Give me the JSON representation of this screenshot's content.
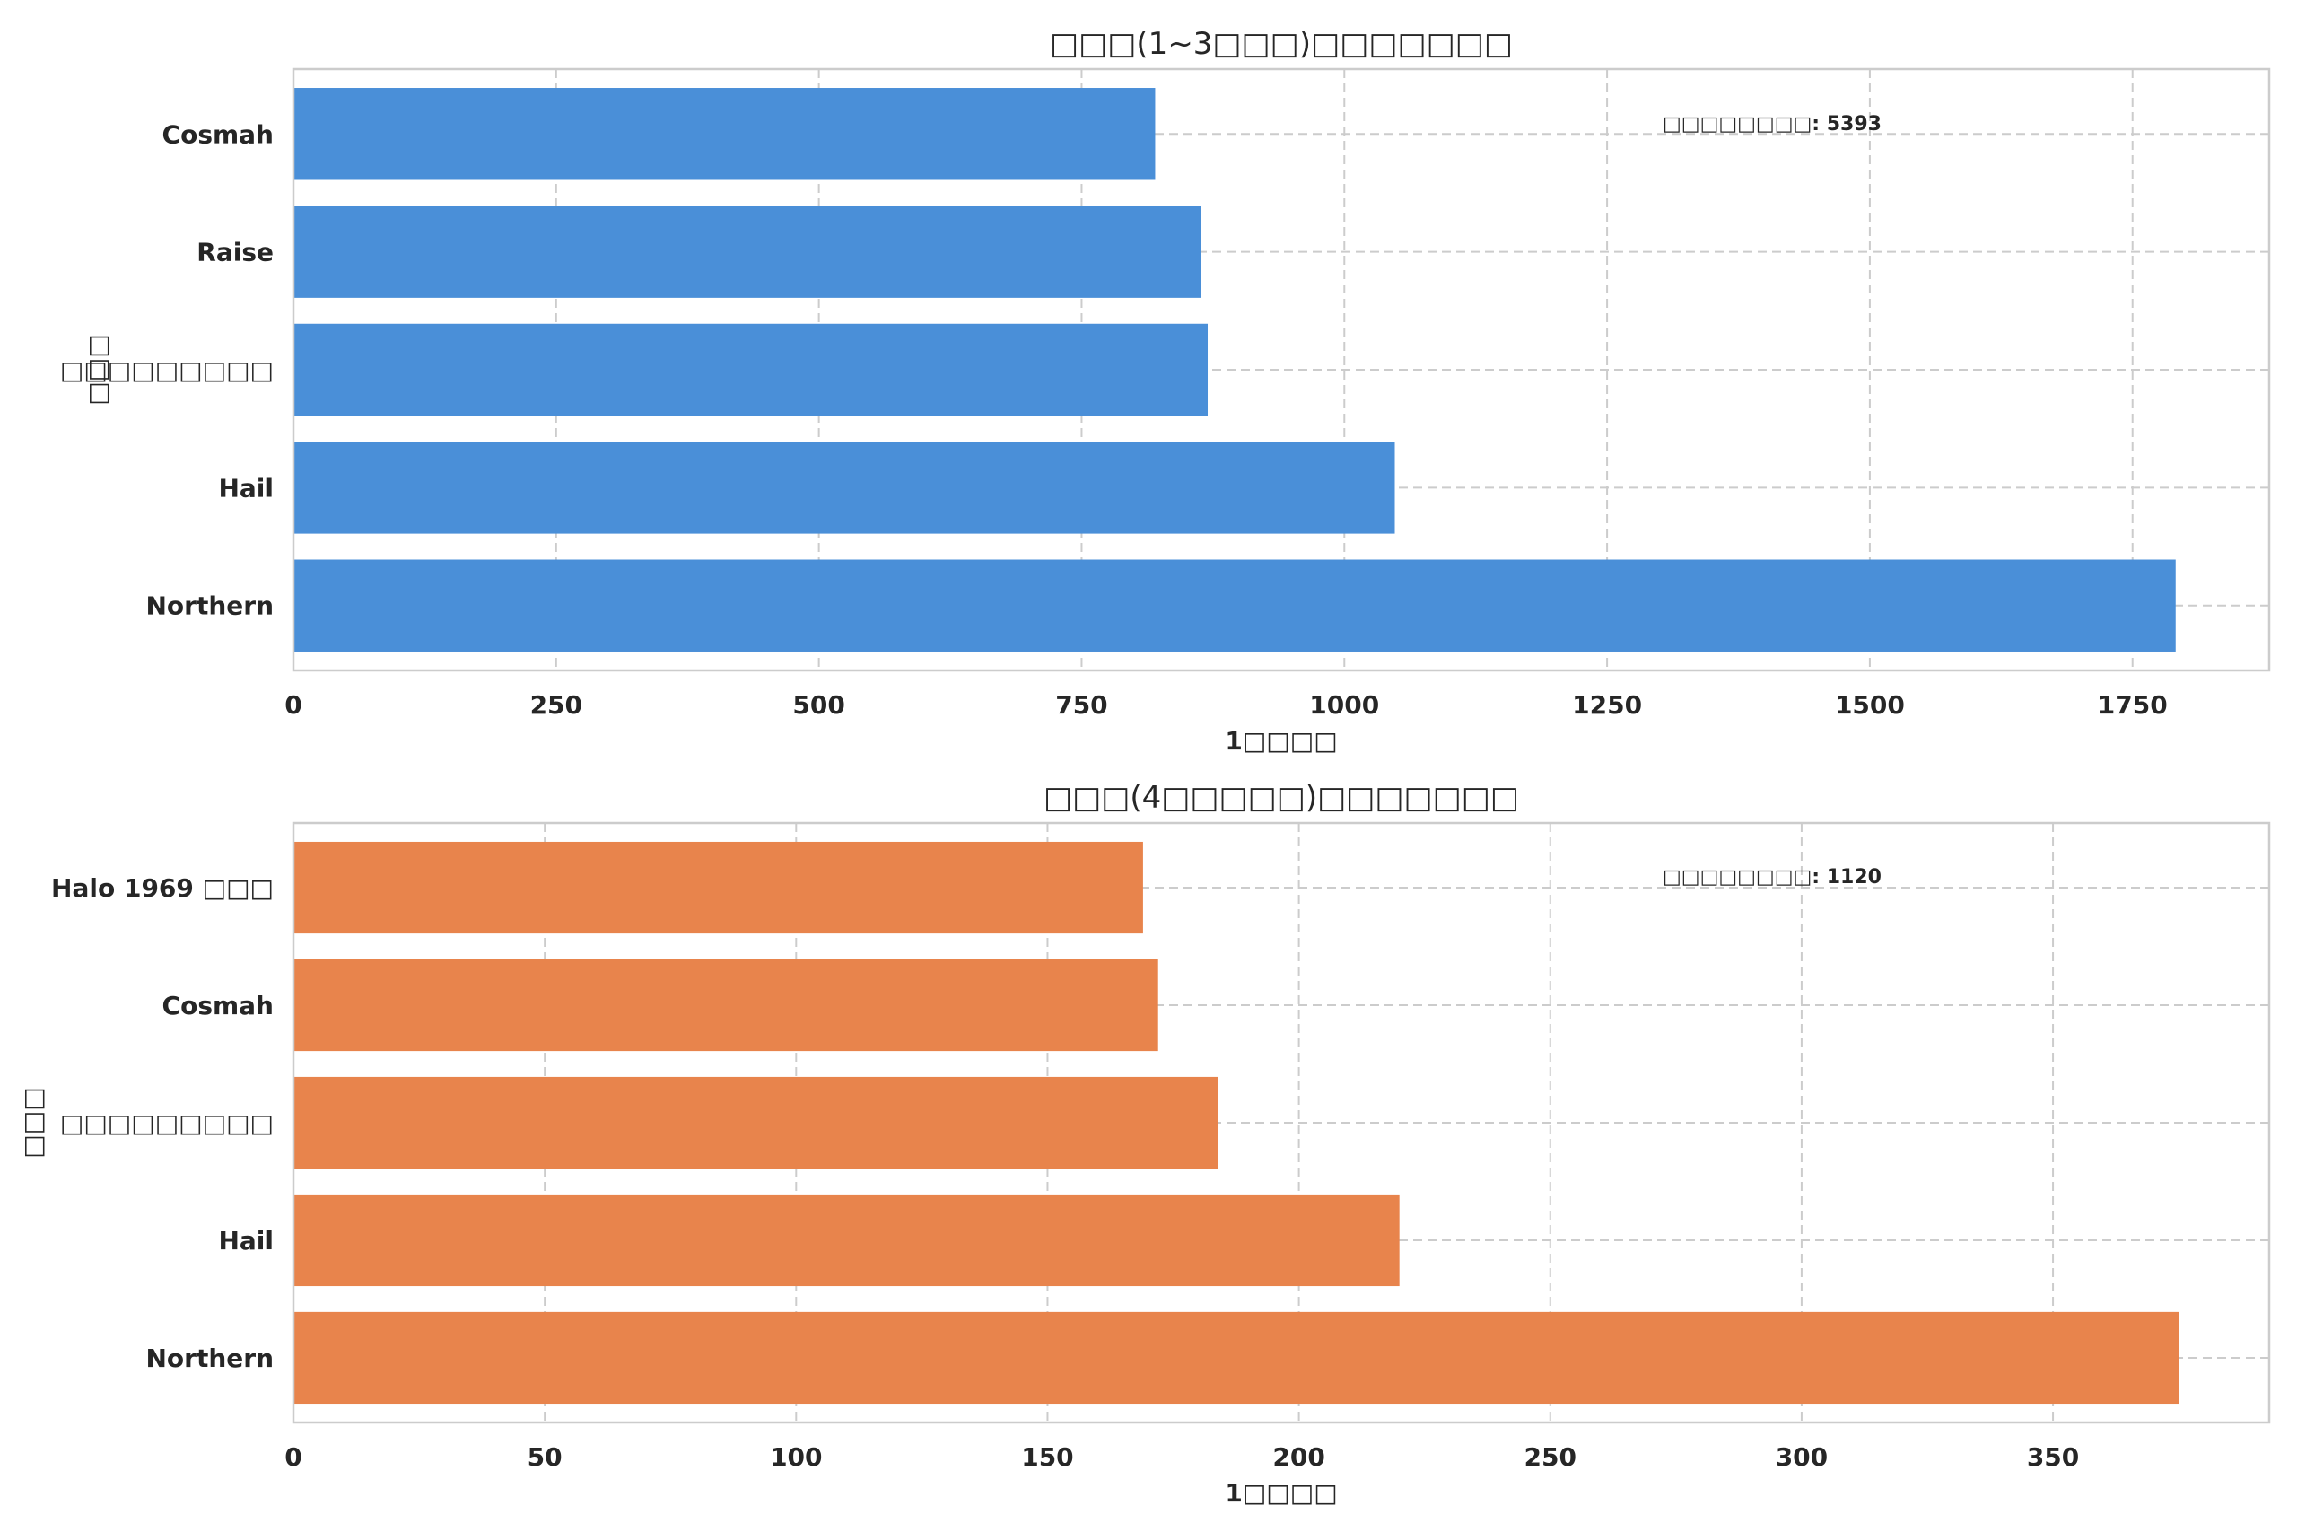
{
  "chart_data": [
    {
      "type": "bar",
      "orientation": "horizontal",
      "title": "□□□(1~3□□□)□□□□□□□",
      "xlabel": "1□□□□",
      "ylabel": "□□□",
      "categories": [
        "Northern",
        "Hail",
        "□□□□□□□□□",
        "Raise",
        "Cosmah"
      ],
      "category_bold": [
        true,
        true,
        false,
        true,
        true
      ],
      "values": [
        1791,
        1048,
        870,
        864,
        820
      ],
      "xlim": [
        0,
        1880
      ],
      "xticks": [
        0,
        250,
        500,
        750,
        1000,
        1250,
        1500,
        1750
      ],
      "grid": true,
      "color": "#4a8fd8",
      "annotation": "□□□□□□□□: 5393",
      "annotation_placement": "top-right"
    },
    {
      "type": "bar",
      "orientation": "horizontal",
      "title": "□□□(4□□□□□)□□□□□□□",
      "xlabel": "1□□□□",
      "ylabel": "□□□",
      "categories": [
        "Northern",
        "Hail",
        "□□□□□□□□□",
        "Cosmah",
        "Halo 1969 □□□"
      ],
      "category_bold": [
        true,
        true,
        false,
        true,
        true
      ],
      "values": [
        375,
        220,
        184,
        172,
        169
      ],
      "xlim": [
        0,
        393
      ],
      "xticks": [
        0,
        50,
        100,
        150,
        200,
        250,
        300,
        350
      ],
      "grid": true,
      "color": "#e8844c",
      "annotation": "□□□□□□□□: 1120",
      "annotation_placement": "top-right"
    }
  ]
}
